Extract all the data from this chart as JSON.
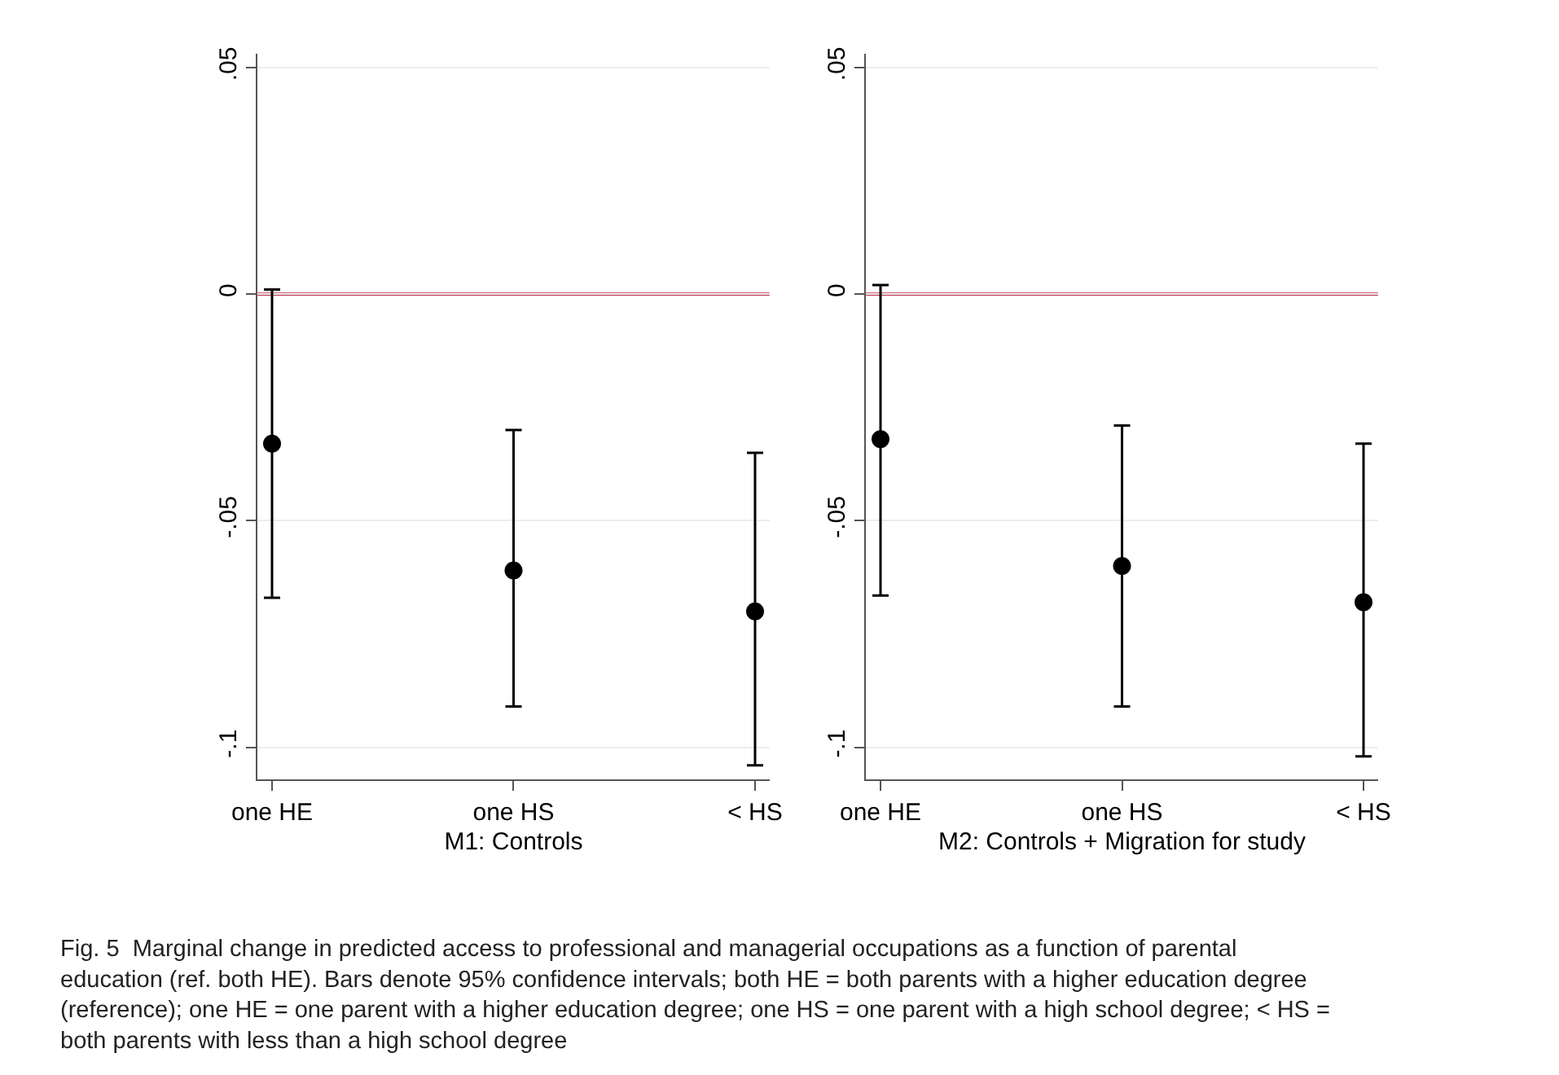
{
  "chart_data": [
    {
      "type": "scatter",
      "categories": [
        "one HE",
        "one HS",
        "< HS"
      ],
      "xlabel": "M1: Controls",
      "color": "#000000",
      "marker": "circle",
      "values": [
        -0.033,
        -0.061,
        -0.07
      ],
      "errors": [
        [
          -0.067,
          0.001
        ],
        [
          -0.091,
          -0.03
        ],
        [
          -0.104,
          -0.035
        ]
      ],
      "ylim": [
        -0.107,
        0.053
      ],
      "yticks": [
        {
          "value": 0.05,
          "label": ".05"
        },
        0,
        {
          "value": -0.05,
          "label": "-.05"
        },
        {
          "value": -0.1,
          "label": "-.1"
        }
      ],
      "grid": "y",
      "ref_lines": [
        {
          "axis": "y",
          "value": 0,
          "color": "#c0284f"
        }
      ],
      "annotations": [
        "Fig. 5  Marginal change in predicted access to professional and managerial occupations as a function of parental education (ref. both HE). Bars denote 95% confidence intervals; both HE = both parents with a higher education degree (reference); one HE = one parent with a higher education degree; one HS = one parent with a high school degree; < HS = both parents with less than a high school degree"
      ]
    },
    {
      "type": "scatter",
      "categories": [
        "one HE",
        "one HS",
        "< HS"
      ],
      "xlabel": "M2: Controls + Migration for study",
      "color": "#000000",
      "marker": "circle",
      "values": [
        -0.032,
        -0.06,
        -0.068
      ],
      "errors": [
        [
          -0.0665,
          0.002
        ],
        [
          -0.091,
          -0.029
        ],
        [
          -0.102,
          -0.033
        ]
      ],
      "ylim": [
        -0.107,
        0.053
      ],
      "yticks": [
        {
          "value": 0.05,
          "label": ".05"
        },
        0,
        {
          "value": -0.05,
          "label": "-.05"
        },
        {
          "value": -0.1,
          "label": "-.1"
        }
      ],
      "grid": "y",
      "ref_lines": [
        {
          "axis": "y",
          "value": 0,
          "color": "#c0284f"
        }
      ]
    }
  ]
}
